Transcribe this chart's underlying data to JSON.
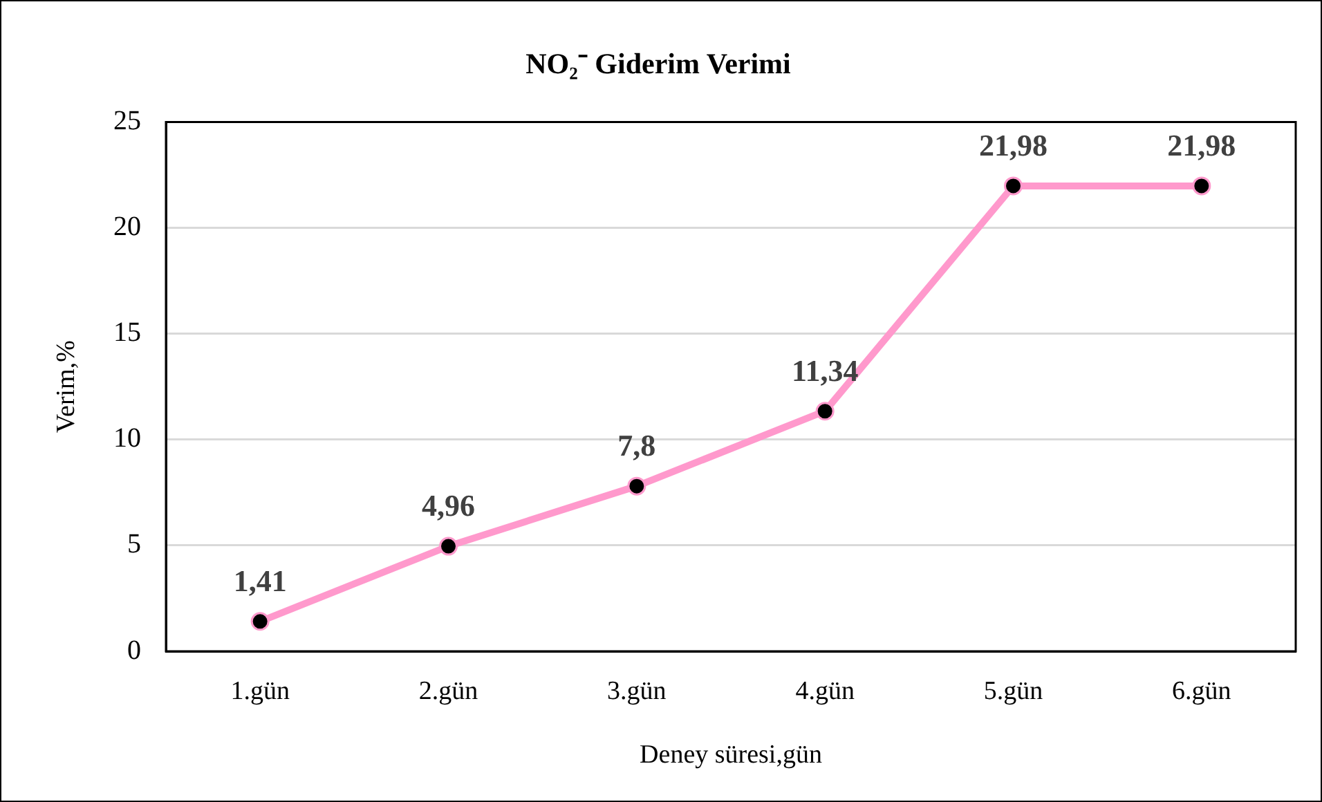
{
  "chart_data": {
    "type": "line",
    "title": "NO₂⁻ Giderim Verimi",
    "xlabel": "Deney süresi,gün",
    "ylabel": "Verim,%",
    "categories": [
      "1.gün",
      "2.gün",
      "3.gün",
      "4.gün",
      "5.gün",
      "6.gün"
    ],
    "series": [
      {
        "color": "#ff99cc",
        "values": [
          1.41,
          4.96,
          7.8,
          11.34,
          21.98,
          21.98
        ],
        "value_labels": [
          "1,41",
          "4,96",
          "7,8",
          "11,34",
          "21,98",
          "21,98"
        ]
      }
    ],
    "ylim": [
      0,
      25
    ],
    "yticks": [
      0,
      5,
      10,
      15,
      20,
      25
    ],
    "grid": "y",
    "marker": "circle",
    "line_style": "solid"
  }
}
